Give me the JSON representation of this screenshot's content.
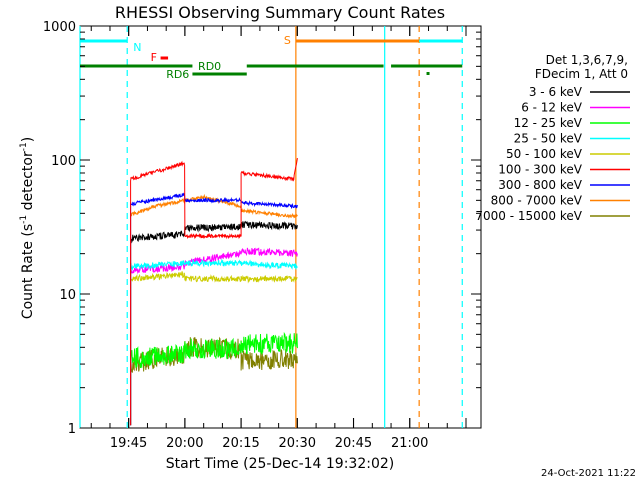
{
  "chart_data": {
    "type": "line",
    "title": "RHESSI Observing Summary Count Rates",
    "xlabel": "Start Time (25-Dec-14 19:32:02)",
    "ylabel": "Count Rate (s⁻¹ detector⁻¹)",
    "ylabel_base": "Count Rate (s",
    "ylabel_mid": " detector",
    "ylabel_sup": "-1",
    "yscale": "log",
    "ylim": [
      1,
      1000
    ],
    "xlim_minutes": [
      0,
      107
    ],
    "x_ticks": [
      {
        "label": "19:45",
        "minute": 12.97
      },
      {
        "label": "20:00",
        "minute": 27.97
      },
      {
        "label": "20:15",
        "minute": 42.97
      },
      {
        "label": "20:30",
        "minute": 57.97
      },
      {
        "label": "20:45",
        "minute": 72.97
      },
      {
        "label": "21:00",
        "minute": 87.97
      }
    ],
    "y_ticks": [
      {
        "label": "1",
        "value": 1
      },
      {
        "label": "10",
        "value": 10
      },
      {
        "label": "100",
        "value": 100
      },
      {
        "label": "1000",
        "value": 1000
      }
    ],
    "legend_header": [
      "Det 1,3,6,7,9,",
      "FDecim 1, Att 0"
    ],
    "legend_placement": "right",
    "series": [
      {
        "name": "3 - 6 keV",
        "color": "#000000",
        "segments": [
          {
            "x": [
              13.5,
              28
            ],
            "y": [
              26,
              28
            ]
          },
          {
            "x": [
              28,
              43
            ],
            "y": [
              31,
              32
            ]
          },
          {
            "x": [
              43,
              58
            ],
            "y": [
              33,
              32
            ]
          }
        ]
      },
      {
        "name": "6 - 12 keV",
        "color": "#ff00ff",
        "segments": [
          {
            "x": [
              13.5,
              28
            ],
            "y": [
              15,
              16
            ]
          },
          {
            "x": [
              28,
              43
            ],
            "y": [
              17,
              20
            ]
          },
          {
            "x": [
              43,
              58
            ],
            "y": [
              21,
              20
            ]
          }
        ]
      },
      {
        "name": "12 - 25 keV",
        "color": "#00ff00",
        "segments": [
          {
            "x": [
              13.5,
              28
            ],
            "y": [
              3.3,
              3.6
            ]
          },
          {
            "x": [
              28,
              43
            ],
            "y": [
              3.9,
              3.9
            ]
          },
          {
            "x": [
              43,
              58
            ],
            "y": [
              4.2,
              4.3
            ]
          }
        ]
      },
      {
        "name": "25 - 50 keV",
        "color": "#00ffff",
        "segments": [
          {
            "x": [
              13.5,
              28
            ],
            "y": [
              16,
              17
            ]
          },
          {
            "x": [
              28,
              43
            ],
            "y": [
              17,
              17
            ]
          },
          {
            "x": [
              43,
              58
            ],
            "y": [
              17,
              16
            ]
          }
        ]
      },
      {
        "name": "50 - 100 keV",
        "color": "#cccc00",
        "segments": [
          {
            "x": [
              13.5,
              28
            ],
            "y": [
              13,
              14
            ]
          },
          {
            "x": [
              28,
              43
            ],
            "y": [
              13,
              13
            ]
          },
          {
            "x": [
              43,
              58
            ],
            "y": [
              13,
              13
            ]
          }
        ]
      },
      {
        "name": "100 - 300 keV",
        "color": "#ff0000",
        "segments": [
          {
            "x": [
              13.5,
              28
            ],
            "y": [
              72,
              95
            ]
          },
          {
            "x": [
              28,
              43
            ],
            "y": [
              27,
              27
            ]
          },
          {
            "x": [
              43,
              57,
              58
            ],
            "y": [
              80,
              72,
              105
            ]
          }
        ]
      },
      {
        "name": "300 - 800 keV",
        "color": "#0000ff",
        "segments": [
          {
            "x": [
              13.5,
              28
            ],
            "y": [
              47,
              55
            ]
          },
          {
            "x": [
              28,
              43
            ],
            "y": [
              50,
              50
            ]
          },
          {
            "x": [
              43,
              58
            ],
            "y": [
              48,
              45
            ]
          }
        ]
      },
      {
        "name": "800 - 7000 keV",
        "color": "#ff8000",
        "segments": [
          {
            "x": [
              13.5,
              20,
              28
            ],
            "y": [
              39,
              45,
              50
            ]
          },
          {
            "x": [
              28,
              33,
              43
            ],
            "y": [
              50,
              53,
              45
            ]
          },
          {
            "x": [
              43,
              50,
              58
            ],
            "y": [
              42,
              40,
              38
            ]
          }
        ]
      },
      {
        "name": "7000 - 15000 keV",
        "color": "#808000",
        "segments": [
          {
            "x": [
              13.5,
              28
            ],
            "y": [
              3.0,
              3.6
            ]
          },
          {
            "x": [
              28,
              43
            ],
            "y": [
              4.0,
              3.9
            ]
          },
          {
            "x": [
              43,
              58
            ],
            "y": [
              3.2,
              3.3
            ]
          }
        ]
      }
    ],
    "annotations": [
      {
        "text": "N",
        "color": "#00ffff",
        "type": "night-marker"
      },
      {
        "text": "F",
        "color": "#ff0000",
        "type": "flare-marker"
      },
      {
        "text": "S",
        "color": "#ff8000",
        "type": "saa-marker"
      },
      {
        "text": "RD0",
        "color": "#008000",
        "type": "rate-decimation"
      },
      {
        "text": "RD6",
        "color": "#008000",
        "type": "rate-decimation"
      }
    ],
    "vertical_lines": [
      {
        "name": "night-start",
        "minute": 0,
        "color": "#00ffff",
        "style": "solid"
      },
      {
        "name": "night-end",
        "minute": 12.6,
        "color": "#00ffff",
        "style": "dashed"
      },
      {
        "name": "saa-start",
        "minute": 57.6,
        "color": "#ff8000",
        "style": "solid"
      },
      {
        "name": "night-start-2",
        "minute": 81.3,
        "color": "#00ffff",
        "style": "solid"
      },
      {
        "name": "saa-end",
        "minute": 90.5,
        "color": "#ff8000",
        "style": "dashed"
      },
      {
        "name": "night-end-2",
        "minute": 102,
        "color": "#00ffff",
        "style": "dashed"
      }
    ],
    "bars": [
      {
        "name": "night-bar-1",
        "x": [
          0,
          12.6
        ],
        "color": "#00ffff",
        "level": "top"
      },
      {
        "name": "night-bar-2",
        "x": [
          81.3,
          102
        ],
        "color": "#00ffff",
        "level": "top"
      },
      {
        "name": "saa-bar",
        "x": [
          57.6,
          90.5
        ],
        "color": "#ff8000",
        "level": "top"
      },
      {
        "name": "flare-bar",
        "x": [
          21.5,
          23.5
        ],
        "color": "#ff0000",
        "level": "upper"
      },
      {
        "name": "rd0-bar-1",
        "x": [
          0,
          30
        ],
        "color": "#008000",
        "level": "mid"
      },
      {
        "name": "rd0-bar-2",
        "x": [
          44.5,
          81
        ],
        "color": "#008000",
        "level": "mid"
      },
      {
        "name": "rd0-bar-3",
        "x": [
          83,
          102
        ],
        "color": "#008000",
        "level": "mid"
      },
      {
        "name": "rd6-bar",
        "x": [
          30,
          44.5
        ],
        "color": "#008000",
        "level": "low"
      }
    ]
  },
  "footer": {
    "date_stamp": "24-Oct-2021 11:22"
  }
}
